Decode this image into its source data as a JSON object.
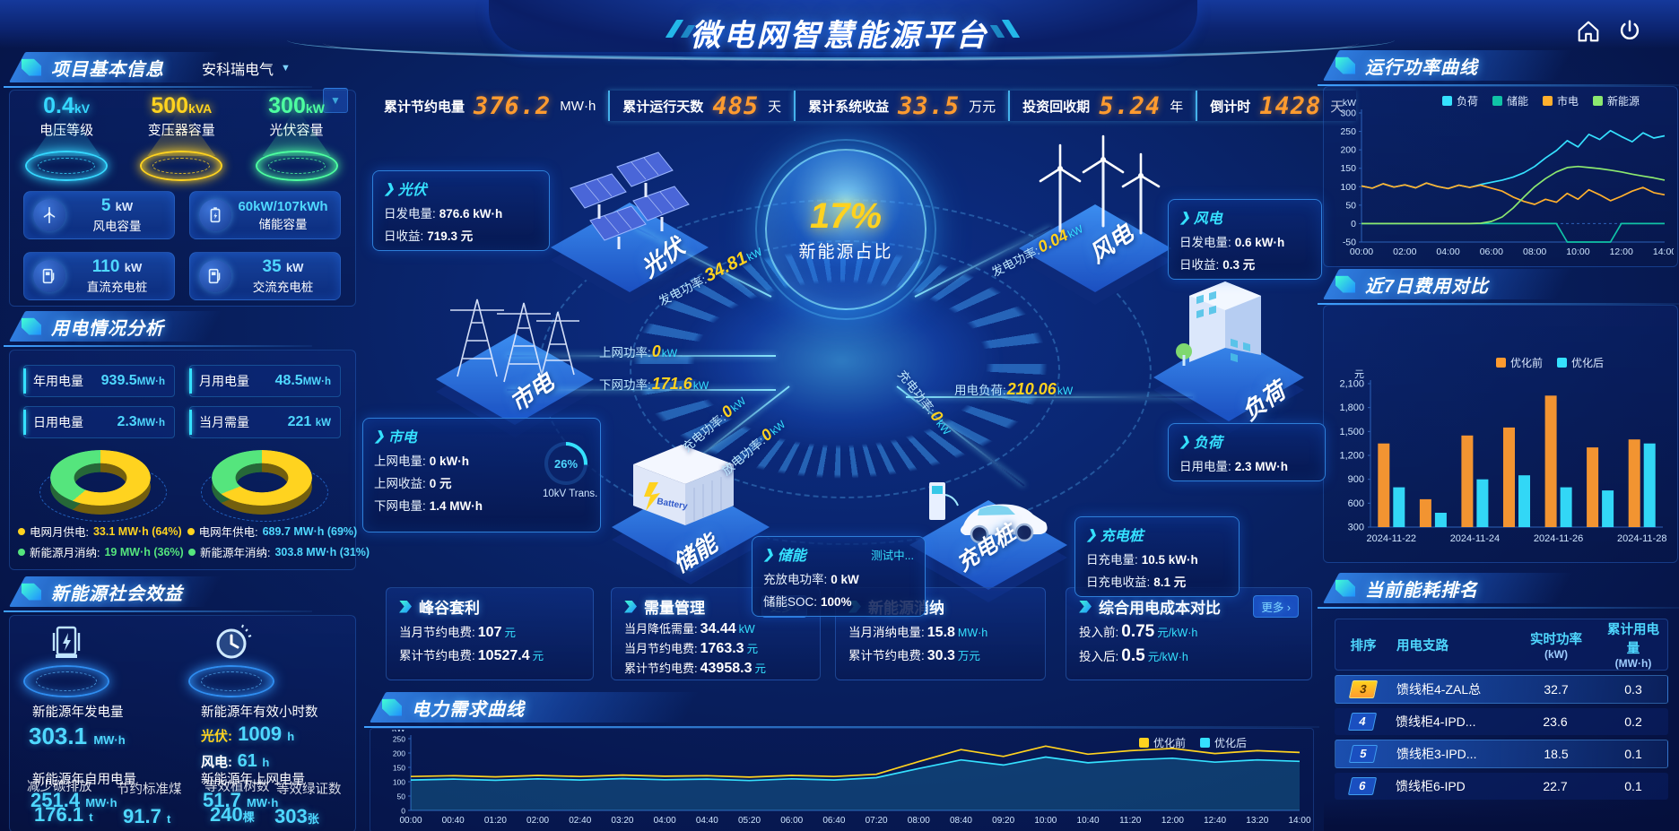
{
  "header": {
    "title": "微电网智慧能源平台"
  },
  "stats_bar": {
    "items": [
      {
        "label": "累计节约电量",
        "value": "376.2",
        "unit": "MW·h"
      },
      {
        "label": "累计运行天数",
        "value": "485",
        "unit": "天"
      },
      {
        "label": "累计系统收益",
        "value": "33.5",
        "unit": "万元"
      },
      {
        "label": "投资回收期",
        "value": "5.24",
        "unit": "年"
      },
      {
        "label": "倒计时",
        "value": "1428",
        "unit": "天"
      }
    ]
  },
  "project_panel": {
    "title": "项目基本信息",
    "company": "安科瑞电气",
    "podiums": [
      {
        "value": "0.4",
        "unit": "kV",
        "label": "电压等级",
        "color": "#35d8ff"
      },
      {
        "value": "500",
        "unit": "kVA",
        "label": "变压器容量",
        "color": "#ffd31f"
      },
      {
        "value": "300",
        "unit": "kW",
        "label": "光伏容量",
        "color": "#4dffa0"
      }
    ],
    "cards": [
      {
        "value": "5",
        "unit": "kW",
        "label": "风电容量"
      },
      {
        "value": "60kW/107kWh",
        "unit": "",
        "label": "储能容量"
      },
      {
        "value": "110",
        "unit": "kW",
        "label": "直流充电桩"
      },
      {
        "value": "35",
        "unit": "kW",
        "label": "交流充电桩"
      }
    ]
  },
  "consumption_panel": {
    "title": "用电情况分析",
    "metrics": [
      {
        "label": "年用电量",
        "value": "939.5",
        "unit": "MW·h"
      },
      {
        "label": "月用电量",
        "value": "48.5",
        "unit": "MW·h"
      },
      {
        "label": "日用电量",
        "value": "2.3",
        "unit": "MW·h"
      },
      {
        "label": "当月需量",
        "value": "221",
        "unit": "kW"
      }
    ],
    "month_legend": [
      {
        "label": "电网月供电:",
        "value": "33.1 MW·h (64%)",
        "color": "#ffd31f",
        "vcolor": "#ffd31f"
      },
      {
        "label": "新能源月消纳:",
        "value": "19 MW·h (36%)",
        "color": "#55e57d",
        "vcolor": "#55e57d"
      }
    ],
    "year_legend": [
      {
        "label": "电网年供电:",
        "value": "689.7 MW·h (69%)",
        "color": "#ffd31f",
        "vcolor": "#4fd8ff"
      },
      {
        "label": "新能源年消纳:",
        "value": "303.8 MW·h (31%)",
        "color": "#55e57d",
        "vcolor": "#4fd8ff"
      }
    ]
  },
  "benefit_panel": {
    "title": "新能源社会效益",
    "gen": {
      "label": "新能源年发电量",
      "value": "303.1",
      "unit": "MW·h"
    },
    "hours": {
      "label": "新能源年有效小时数",
      "pv_label": "光伏:",
      "pv_value": "1009",
      "pv_unit": "h",
      "wind_label": "风电:",
      "wind_value": "61",
      "wind_unit": "h"
    },
    "self_use": {
      "label": "新能源年自用电量",
      "value": "251.4",
      "unit": "MW·h"
    },
    "carbon": {
      "label": "减少碳排放",
      "value": "176.1",
      "unit": "t"
    },
    "coal": {
      "label": "节约标准煤",
      "value": "91.7",
      "unit": "t"
    },
    "to_grid": {
      "label": "新能源年上网电量",
      "value": "51.7",
      "unit": "MW·h"
    },
    "trees": {
      "label": "等效植树数",
      "value": "240",
      "unit": "棵"
    },
    "certs": {
      "label": "等效绿证数",
      "value": "303",
      "unit": "张"
    }
  },
  "diagram": {
    "center": {
      "value": "17%",
      "label": "新能源占比"
    },
    "nodes": {
      "pv": "光伏",
      "wind": "风电",
      "grid": "市电",
      "load": "负荷",
      "storage": "储能",
      "charger": "充电桩"
    },
    "pv_box": {
      "title": "光伏",
      "l1": "日发电量:",
      "v1": "876.6 kW·h",
      "l2": "日收益:",
      "v2": "719.3 元"
    },
    "wind_box": {
      "title": "风电",
      "l1": "日发电量:",
      "v1": "0.6 kW·h",
      "l2": "日收益:",
      "v2": "0.3 元"
    },
    "grid_box": {
      "title": "市电",
      "l1": "上网电量:",
      "v1": "0 kW·h",
      "l2": "上网收益:",
      "v2": "0 元",
      "l3": "下网电量:",
      "v3": "1.4 MW·h",
      "gauge_value": "26%",
      "gauge_label": "10kV Trans."
    },
    "load_box": {
      "title": "负荷",
      "l1": "日用电量:",
      "v1": "2.3 MW·h"
    },
    "storage_box": {
      "title": "储能",
      "status": "测试中...",
      "l1": "充放电功率:",
      "v1": "0 kW",
      "l2": "储能SOC:",
      "v2": "100%"
    },
    "charger_box": {
      "title": "充电桩",
      "l1": "日充电量:",
      "v1": "10.5 kW·h",
      "l2": "日充电收益:",
      "v2": "8.1 元"
    },
    "flows": {
      "pv_power": {
        "label": "发电功率:",
        "value": "34.81",
        "unit": "kW"
      },
      "wind_power": {
        "label": "发电功率:",
        "value": "0.04",
        "unit": "kW"
      },
      "to_grid": {
        "label": "上网功率:",
        "value": "0",
        "unit": "kW"
      },
      "from_grid": {
        "label": "下网功率:",
        "value": "171.6",
        "unit": "kW"
      },
      "load": {
        "label": "用电负荷:",
        "value": "210.06",
        "unit": "kW"
      },
      "chg": {
        "label": "充电功率:",
        "value": "0",
        "unit": "kW"
      },
      "dchg": {
        "label": "放电功率:",
        "value": "0",
        "unit": "kW"
      },
      "ev_chg": {
        "label": "充电功率:",
        "value": "0",
        "unit": "kW"
      }
    }
  },
  "bottom_panels": [
    {
      "title": "峰谷套利",
      "rows": [
        {
          "label": "当月节约电费:",
          "value": "107",
          "unit": "元"
        },
        {
          "label": "累计节约电费:",
          "value": "10527.4",
          "unit": "元"
        }
      ]
    },
    {
      "title": "需量管理",
      "more": "更多",
      "rows": [
        {
          "label": "当月降低需量:",
          "value": "34.44",
          "unit": "kW"
        },
        {
          "label": "当月节约电费:",
          "value": "1763.3",
          "unit": "元"
        },
        {
          "label": "累计节约电费:",
          "value": "43958.3",
          "unit": "元"
        }
      ]
    },
    {
      "title": "新能源消纳",
      "rows": [
        {
          "label": "当月消纳电量:",
          "value": "15.8",
          "unit": "MW·h"
        },
        {
          "label": "累计节约电费:",
          "value": "30.3",
          "unit": "万元"
        }
      ]
    },
    {
      "title": "综合用电成本对比",
      "more": "更多",
      "rows": [
        {
          "label": "投入前:",
          "value": "0.75",
          "unit": "元/kW·h"
        },
        {
          "label": "投入后:",
          "value": "0.5",
          "unit": "元/kW·h"
        }
      ]
    }
  ],
  "demand_panel": {
    "title": "电力需求曲线"
  },
  "power_panel": {
    "title": "运行功率曲线"
  },
  "cost_panel": {
    "title": "近7日费用对比"
  },
  "ranking_panel": {
    "title": "当前能耗排名",
    "columns": [
      {
        "label": "排序",
        "unit": ""
      },
      {
        "label": "用电支路",
        "unit": ""
      },
      {
        "label": "实时功率",
        "unit": "(kW)"
      },
      {
        "label": "累计用电量",
        "unit": "(MW·h)"
      }
    ],
    "rows": [
      {
        "rank": "3",
        "branch": "馈线柜4-ZAL总",
        "power": "32.7",
        "energy": "0.3"
      },
      {
        "rank": "4",
        "branch": "馈线柜4-IPD...",
        "power": "23.6",
        "energy": "0.2"
      },
      {
        "rank": "5",
        "branch": "馈线柜3-IPD...",
        "power": "18.5",
        "energy": "0.1"
      },
      {
        "rank": "6",
        "branch": "馈线柜6-IPD",
        "power": "22.7",
        "energy": "0.1"
      }
    ]
  },
  "chart_data": [
    {
      "id": "power-curve",
      "type": "line",
      "title": "运行功率曲线",
      "ylabel": "kW",
      "ylim": [
        -50,
        300
      ],
      "yticks": [
        300,
        250,
        200,
        150,
        100,
        50,
        0,
        -50
      ],
      "xticks": [
        "00:00",
        "02:00",
        "04:00",
        "06:00",
        "08:00",
        "10:00",
        "12:00",
        "14:00"
      ],
      "legend_position": "top",
      "grid": false,
      "series": [
        {
          "name": "负荷",
          "color": "#35e1ff",
          "values": [
            102,
            96,
            108,
            99,
            105,
            97,
            110,
            101,
            95,
            104,
            98,
            106,
            112,
            118,
            126,
            138,
            155,
            178,
            198,
            225,
            208,
            242,
            228,
            252,
            236,
            222,
            246,
            232,
            238
          ]
        },
        {
          "name": "储能",
          "color": "#10c3a6",
          "values": [
            0,
            0,
            0,
            0,
            0,
            0,
            0,
            0,
            0,
            0,
            0,
            0,
            0,
            0,
            0,
            0,
            0,
            0,
            0,
            -50,
            -50,
            -50,
            -50,
            -50,
            0,
            0,
            0,
            0,
            0
          ]
        },
        {
          "name": "市电",
          "color": "#ffb02e",
          "values": [
            102,
            96,
            108,
            99,
            105,
            97,
            110,
            101,
            95,
            104,
            98,
            104,
            96,
            88,
            72,
            60,
            52,
            66,
            58,
            82,
            66,
            92,
            78,
            62,
            74,
            88,
            98,
            84,
            78
          ]
        },
        {
          "name": "新能源",
          "color": "#8ce86f",
          "values": [
            0,
            0,
            0,
            0,
            0,
            0,
            0,
            0,
            0,
            0,
            0,
            1,
            6,
            18,
            42,
            72,
            100,
            122,
            140,
            152,
            155,
            152,
            149,
            145,
            140,
            134,
            129,
            124,
            118
          ]
        }
      ]
    },
    {
      "id": "cost-compare",
      "type": "bar",
      "title": "近7日费用对比",
      "ylabel": "元",
      "ylim": [
        300,
        2100
      ],
      "yticks": [
        2100,
        1800,
        1500,
        1200,
        900,
        600,
        300
      ],
      "categories": [
        "2024-11-22",
        "2024-11-23",
        "2024-11-24",
        "2024-11-25",
        "2024-11-26",
        "2024-11-27",
        "2024-11-28"
      ],
      "xtick_labels": [
        "2024-11-22",
        "2024-11-24",
        "2024-11-26",
        "2024-11-28"
      ],
      "xtick_positions": [
        0,
        2,
        4,
        6
      ],
      "legend_position": "top-right",
      "series": [
        {
          "name": "优化前",
          "color": "#ff9b2f",
          "values": [
            1350,
            650,
            1450,
            1550,
            1950,
            1300,
            1400
          ]
        },
        {
          "name": "优化后",
          "color": "#35e1ff",
          "values": [
            800,
            480,
            900,
            950,
            800,
            760,
            1350
          ]
        }
      ]
    },
    {
      "id": "demand-curve",
      "type": "line",
      "title": "电力需求曲线",
      "ylabel": "kW",
      "ylim": [
        0,
        250
      ],
      "yticks": [
        250,
        200,
        150,
        100,
        50,
        0
      ],
      "xticks": [
        "00:00",
        "00:40",
        "01:20",
        "02:00",
        "02:40",
        "03:20",
        "04:00",
        "04:40",
        "05:20",
        "06:00",
        "06:40",
        "07:20",
        "08:00",
        "08:40",
        "09:20",
        "10:00",
        "10:40",
        "11:20",
        "12:00",
        "12:40",
        "13:20",
        "14:00"
      ],
      "legend_position": "top-right",
      "series": [
        {
          "name": "优化前",
          "color": "#ffd21f",
          "values": [
            118,
            121,
            117,
            122,
            118,
            123,
            119,
            121,
            116,
            122,
            118,
            126,
            170,
            212,
            188,
            224,
            196,
            208,
            216,
            198,
            208,
            202
          ]
        },
        {
          "name": "优化后",
          "color": "#35e1ff",
          "fill": true,
          "values": [
            106,
            109,
            105,
            110,
            106,
            111,
            107,
            109,
            104,
            110,
            106,
            114,
            146,
            176,
            158,
            186,
            166,
            176,
            182,
            168,
            176,
            171
          ]
        }
      ]
    },
    {
      "id": "month-donut",
      "type": "pie",
      "slices": [
        {
          "name": "电网月供电",
          "value": 33.1,
          "pct": 64,
          "color": "#ffd31f"
        },
        {
          "name": "新能源月消纳",
          "value": 19,
          "pct": 36,
          "color": "#55e57d"
        }
      ]
    },
    {
      "id": "year-donut",
      "type": "pie",
      "slices": [
        {
          "name": "电网年供电",
          "value": 689.7,
          "pct": 69,
          "color": "#ffd31f"
        },
        {
          "name": "新能源年消纳",
          "value": 303.8,
          "pct": 31,
          "color": "#55e57d"
        }
      ]
    }
  ]
}
